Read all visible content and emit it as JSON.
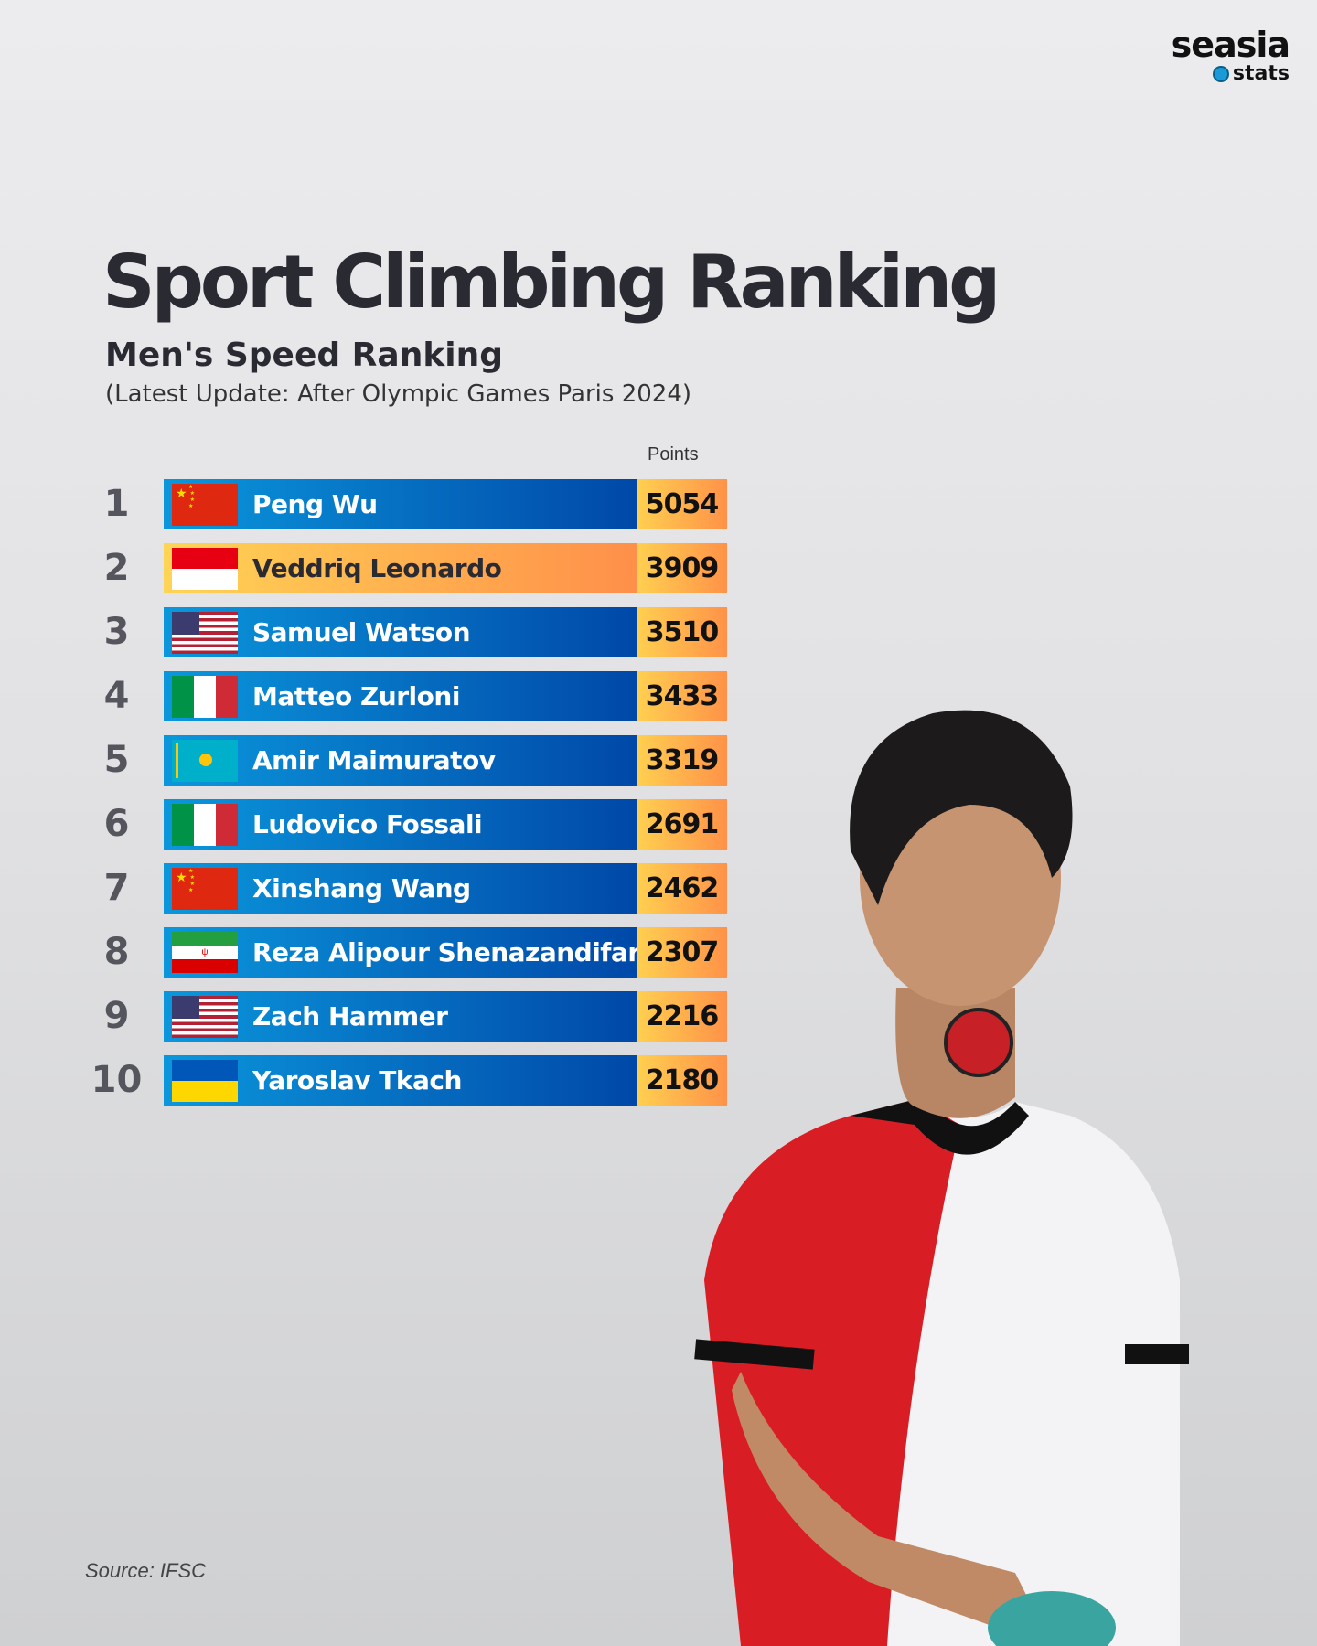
{
  "logo": {
    "brand": "seasia",
    "sub": "stats"
  },
  "title": "Sport Climbing Ranking",
  "subtitle": "Men's Speed Ranking",
  "update": "(Latest Update: After Olympic Games Paris 2024)",
  "points_label": "Points",
  "rows": [
    {
      "rank": "1",
      "name": "Peng Wu",
      "points": "5054",
      "flag": "china"
    },
    {
      "rank": "2",
      "name": "Veddriq Leonardo",
      "points": "3909",
      "flag": "indonesia"
    },
    {
      "rank": "3",
      "name": "Samuel Watson",
      "points": "3510",
      "flag": "usa"
    },
    {
      "rank": "4",
      "name": "Matteo Zurloni",
      "points": "3433",
      "flag": "italy"
    },
    {
      "rank": "5",
      "name": "Amir Maimuratov",
      "points": "3319",
      "flag": "kazakhstan"
    },
    {
      "rank": "6",
      "name": "Ludovico Fossali",
      "points": "2691",
      "flag": "italy"
    },
    {
      "rank": "7",
      "name": "Xinshang Wang",
      "points": "2462",
      "flag": "china"
    },
    {
      "rank": "8",
      "name": "Reza Alipour Shenazandifard",
      "points": "2307",
      "flag": "iran"
    },
    {
      "rank": "9",
      "name": "Zach Hammer",
      "points": "2216",
      "flag": "usa"
    },
    {
      "rank": "10",
      "name": "Yaroslav Tkach",
      "points": "2180",
      "flag": "ukraine"
    }
  ],
  "source": "Source: IFSC",
  "colors": {
    "bar_blue_start": "#0b97dc",
    "bar_blue_end": "#0048a8",
    "gold_start": "#ffd455",
    "gold_end": "#ff8f4a"
  }
}
